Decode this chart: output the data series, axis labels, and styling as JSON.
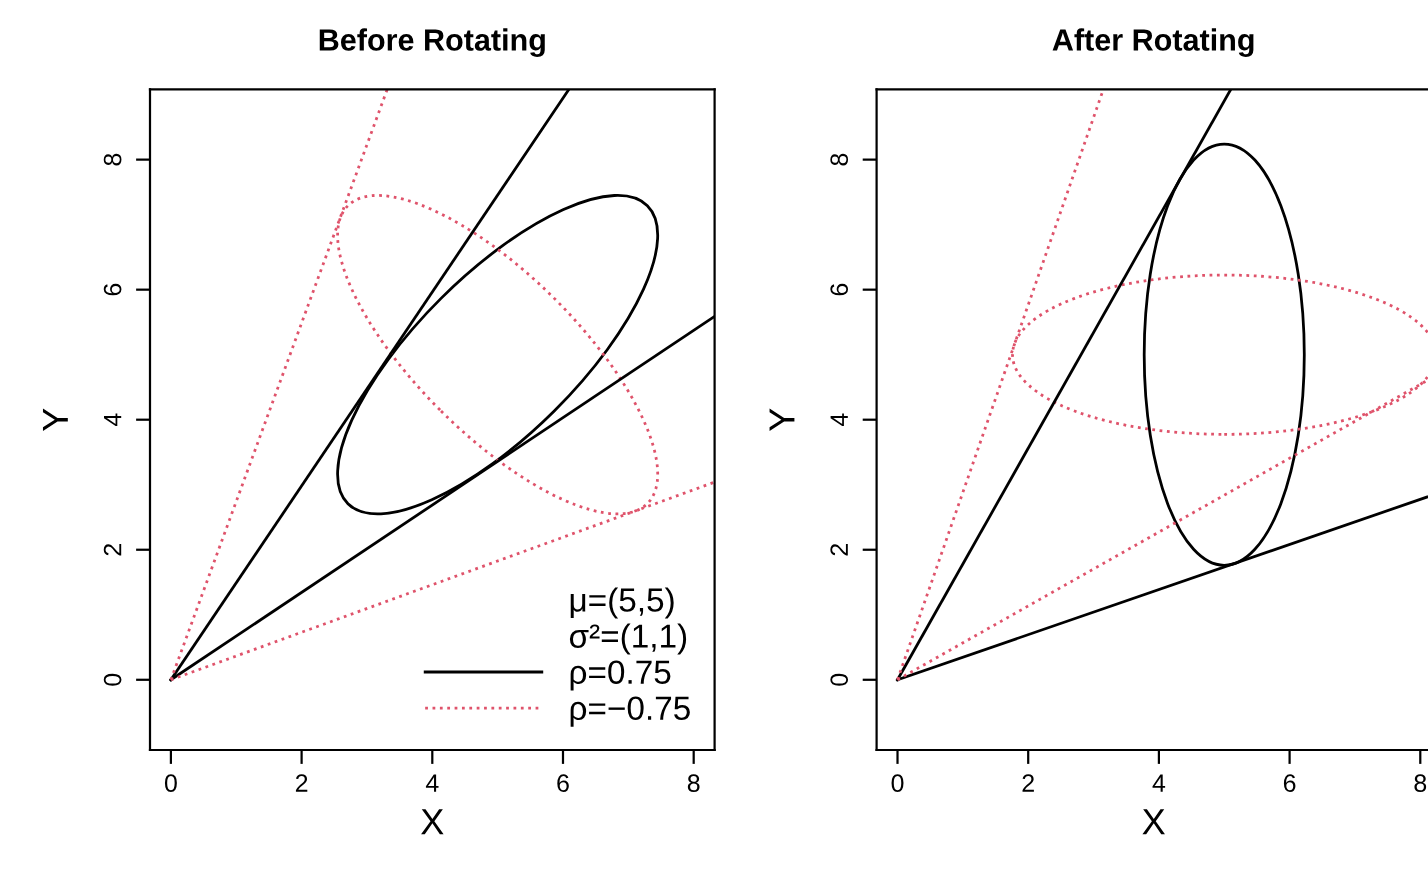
{
  "chart_data": [
    {
      "type": "line",
      "title": "Before Rotating",
      "xlabel": "X",
      "ylabel": "Y",
      "xlim": [
        -0.32,
        8.32
      ],
      "ylim": [
        -1.08,
        9.08
      ],
      "xticks": [
        0,
        2,
        4,
        6,
        8
      ],
      "yticks": [
        0,
        2,
        4,
        6,
        8
      ],
      "grid": false,
      "legend": "bottom right",
      "annotations": [
        "μ=(5,5)",
        "σ²=(1,1)"
      ],
      "series": [
        {
          "name": "ρ=0.75",
          "color": "#000000",
          "line_style": "solid",
          "x": [
            0,
            6.09
          ],
          "values": [
            0,
            9.08
          ]
        },
        {
          "color": "#000000",
          "line_style": "solid",
          "x": [
            0,
            8.32
          ],
          "values": [
            0,
            5.59
          ]
        },
        {
          "name": "ρ=−0.75",
          "color": "#df536b",
          "line_style": "dotted",
          "x": [
            0,
            3.31
          ],
          "values": [
            0,
            9.08
          ]
        },
        {
          "color": "#df536b",
          "line_style": "dotted",
          "x": [
            0,
            8.32
          ],
          "values": [
            0,
            3.04
          ]
        }
      ]
    },
    {
      "type": "line",
      "title": "After Rotating",
      "xlabel": "X",
      "ylabel": "Y",
      "xlim": [
        -0.32,
        8.16
      ],
      "ylim": [
        -1.08,
        9.08
      ],
      "xticks": [
        0,
        2,
        4,
        6,
        8
      ],
      "yticks": [
        0,
        2,
        4,
        6,
        8
      ],
      "grid": false,
      "series": [
        {
          "color": "#000000",
          "line_style": "solid",
          "x": [
            0,
            5.1
          ],
          "values": [
            0,
            9.08
          ]
        },
        {
          "color": "#000000",
          "line_style": "solid",
          "x": [
            0,
            8.1
          ],
          "values": [
            0,
            2.81
          ]
        },
        {
          "color": "#df536b",
          "line_style": "dotted",
          "x": [
            0,
            3.15
          ],
          "values": [
            0,
            9.08
          ]
        },
        {
          "color": "#df536b",
          "line_style": "dotted",
          "x": [
            0,
            8.1
          ],
          "values": [
            0,
            4.6
          ]
        }
      ]
    }
  ]
}
